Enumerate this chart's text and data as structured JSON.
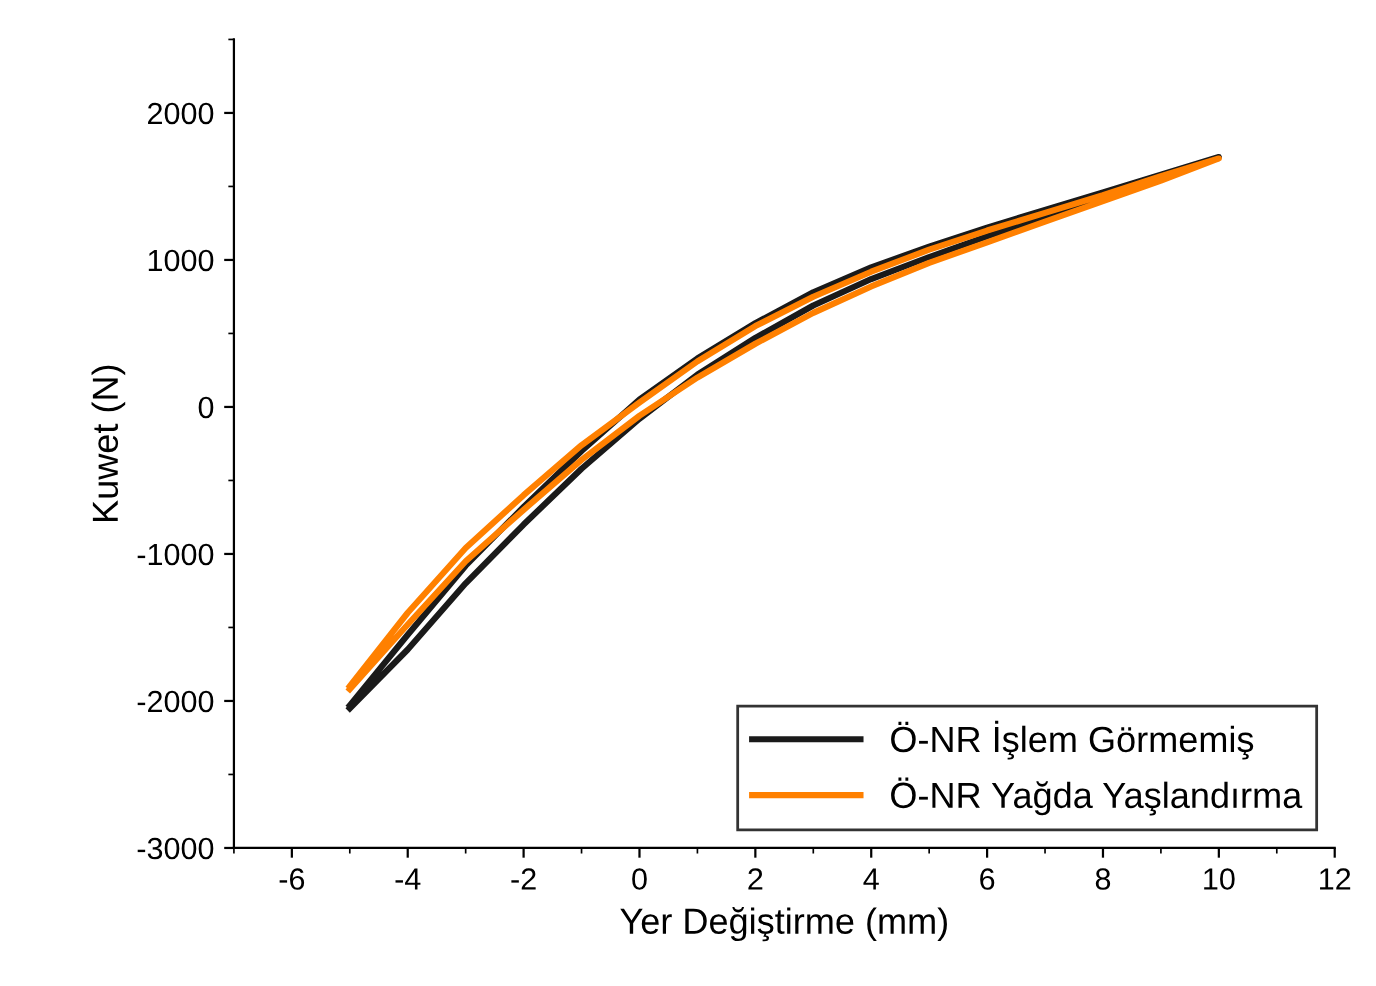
{
  "chart_data": {
    "type": "line",
    "xlabel": "Yer Değiştirme (mm)",
    "ylabel": "Kuwet (N)",
    "xlim": [
      -7,
      12
    ],
    "xticks": [
      -6,
      -4,
      -2,
      0,
      2,
      4,
      6,
      8,
      10,
      12
    ],
    "ylim": [
      -3000,
      2500
    ],
    "yticks": [
      -3000,
      -2000,
      -1000,
      0,
      1000,
      2000
    ],
    "grid": false,
    "legend": "bottom right",
    "line_style": "solid",
    "marker": "none",
    "series": [
      {
        "name": "Ö-NR İşlem Görmemiş",
        "color": "#1a1a1a",
        "x": [
          -5,
          -4,
          -3,
          -2,
          -1,
          0,
          1,
          2,
          3,
          4,
          5,
          6,
          7,
          8,
          9,
          10,
          9,
          8,
          7,
          6,
          5,
          4,
          3,
          2,
          1,
          0,
          -1,
          -2,
          -3,
          -4,
          -5
        ],
        "values": [
          -2030,
          -1550,
          -1080,
          -680,
          -300,
          50,
          330,
          570,
          780,
          950,
          1090,
          1220,
          1340,
          1460,
          1580,
          1700,
          1560,
          1420,
          1290,
          1160,
          1020,
          870,
          690,
          470,
          220,
          -80,
          -420,
          -800,
          -1200,
          -1650,
          -2050
        ]
      },
      {
        "name": "Ö-NR Yağda Yaşlandırma",
        "color": "#ff8000",
        "x": [
          -5,
          -4,
          -3,
          -2,
          -1,
          0,
          1,
          2,
          3,
          4,
          5,
          6,
          7,
          8,
          9,
          10,
          9,
          8,
          7,
          6,
          5,
          4,
          3,
          2,
          1,
          0,
          -1,
          -2,
          -3,
          -4,
          -5
        ],
        "values": [
          -1900,
          -1400,
          -960,
          -600,
          -260,
          30,
          310,
          550,
          750,
          920,
          1070,
          1200,
          1320,
          1440,
          1570,
          1690,
          1540,
          1400,
          1260,
          1120,
          980,
          820,
          640,
          430,
          200,
          -60,
          -360,
          -700,
          -1050,
          -1480,
          -1920
        ]
      }
    ]
  }
}
